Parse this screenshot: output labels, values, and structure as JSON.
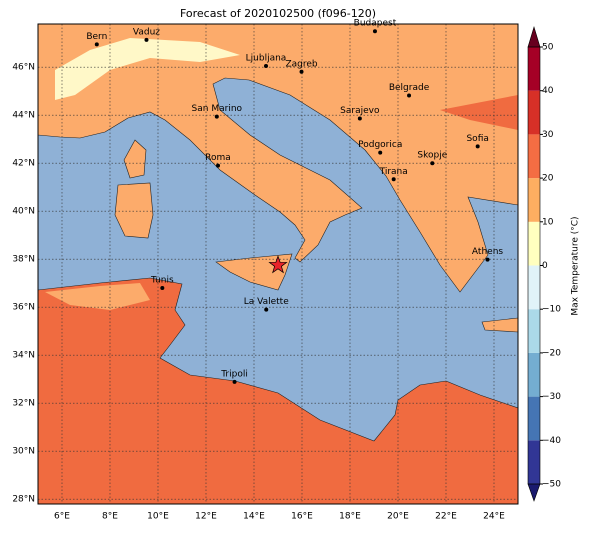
{
  "title": "Forecast of 2020102500 (f096-120)",
  "map": {
    "xlim": [
      5,
      25
    ],
    "ylim": [
      27.8,
      47.8
    ],
    "xticks": [
      {
        "value": 6,
        "label": "6°E"
      },
      {
        "value": 8,
        "label": "8°E"
      },
      {
        "value": 10,
        "label": "10°E"
      },
      {
        "value": 12,
        "label": "12°E"
      },
      {
        "value": 14,
        "label": "14°E"
      },
      {
        "value": 16,
        "label": "16°E"
      },
      {
        "value": 18,
        "label": "18°E"
      },
      {
        "value": 20,
        "label": "20°E"
      },
      {
        "value": 22,
        "label": "22°E"
      },
      {
        "value": 24,
        "label": "24°E"
      }
    ],
    "yticks": [
      {
        "value": 28,
        "label": "28°N"
      },
      {
        "value": 30,
        "label": "30°N"
      },
      {
        "value": 32,
        "label": "32°N"
      },
      {
        "value": 34,
        "label": "34°N"
      },
      {
        "value": 36,
        "label": "36°N"
      },
      {
        "value": 38,
        "label": "38°N"
      },
      {
        "value": 40,
        "label": "40°N"
      },
      {
        "value": 42,
        "label": "42°N"
      },
      {
        "value": 44,
        "label": "44°N"
      },
      {
        "value": 46,
        "label": "46°N"
      }
    ],
    "grid": true,
    "cities": [
      {
        "name": "Bern",
        "lon": 7.45,
        "lat": 46.95
      },
      {
        "name": "Vaduz",
        "lon": 9.52,
        "lat": 47.14
      },
      {
        "name": "Budapest",
        "lon": 19.04,
        "lat": 47.5
      },
      {
        "name": "Ljubljana",
        "lon": 14.5,
        "lat": 46.05
      },
      {
        "name": "Zagreb",
        "lon": 15.98,
        "lat": 45.81
      },
      {
        "name": "Belgrade",
        "lon": 20.46,
        "lat": 44.82
      },
      {
        "name": "San Marino",
        "lon": 12.45,
        "lat": 43.94
      },
      {
        "name": "Sarajevo",
        "lon": 18.41,
        "lat": 43.86
      },
      {
        "name": "Sofia",
        "lon": 23.32,
        "lat": 42.7
      },
      {
        "name": "Roma",
        "lon": 12.5,
        "lat": 41.9
      },
      {
        "name": "Podgorica",
        "lon": 19.26,
        "lat": 42.44
      },
      {
        "name": "Skopje",
        "lon": 21.43,
        "lat": 42.0
      },
      {
        "name": "Tirana",
        "lon": 19.82,
        "lat": 41.33
      },
      {
        "name": "Athens",
        "lon": 23.73,
        "lat": 37.98
      },
      {
        "name": "Tunis",
        "lon": 10.18,
        "lat": 36.8
      },
      {
        "name": "La Valette",
        "lon": 14.51,
        "lat": 35.9
      },
      {
        "name": "Tripoli",
        "lon": 13.19,
        "lat": 32.89
      }
    ],
    "marker": {
      "lon": 15.0,
      "lat": 37.75,
      "color": "#e8232a"
    }
  },
  "colorbar": {
    "label": "Max Temperature (°C)",
    "ticks": [
      {
        "value": -50,
        "label": "−50"
      },
      {
        "value": -40,
        "label": "−40"
      },
      {
        "value": -30,
        "label": "−30"
      },
      {
        "value": -20,
        "label": "−20"
      },
      {
        "value": -10,
        "label": "−10"
      },
      0,
      10,
      20,
      30,
      40,
      50
    ],
    "colors": [
      "#313695",
      "#4575b4",
      "#74add1",
      "#abd9e9",
      "#e0f3f8",
      "#ffffbf",
      "#fdae61",
      "#f46d43",
      "#d73027",
      "#a50026"
    ],
    "under_color": "#1a1a6e",
    "over_color": "#67001f"
  }
}
